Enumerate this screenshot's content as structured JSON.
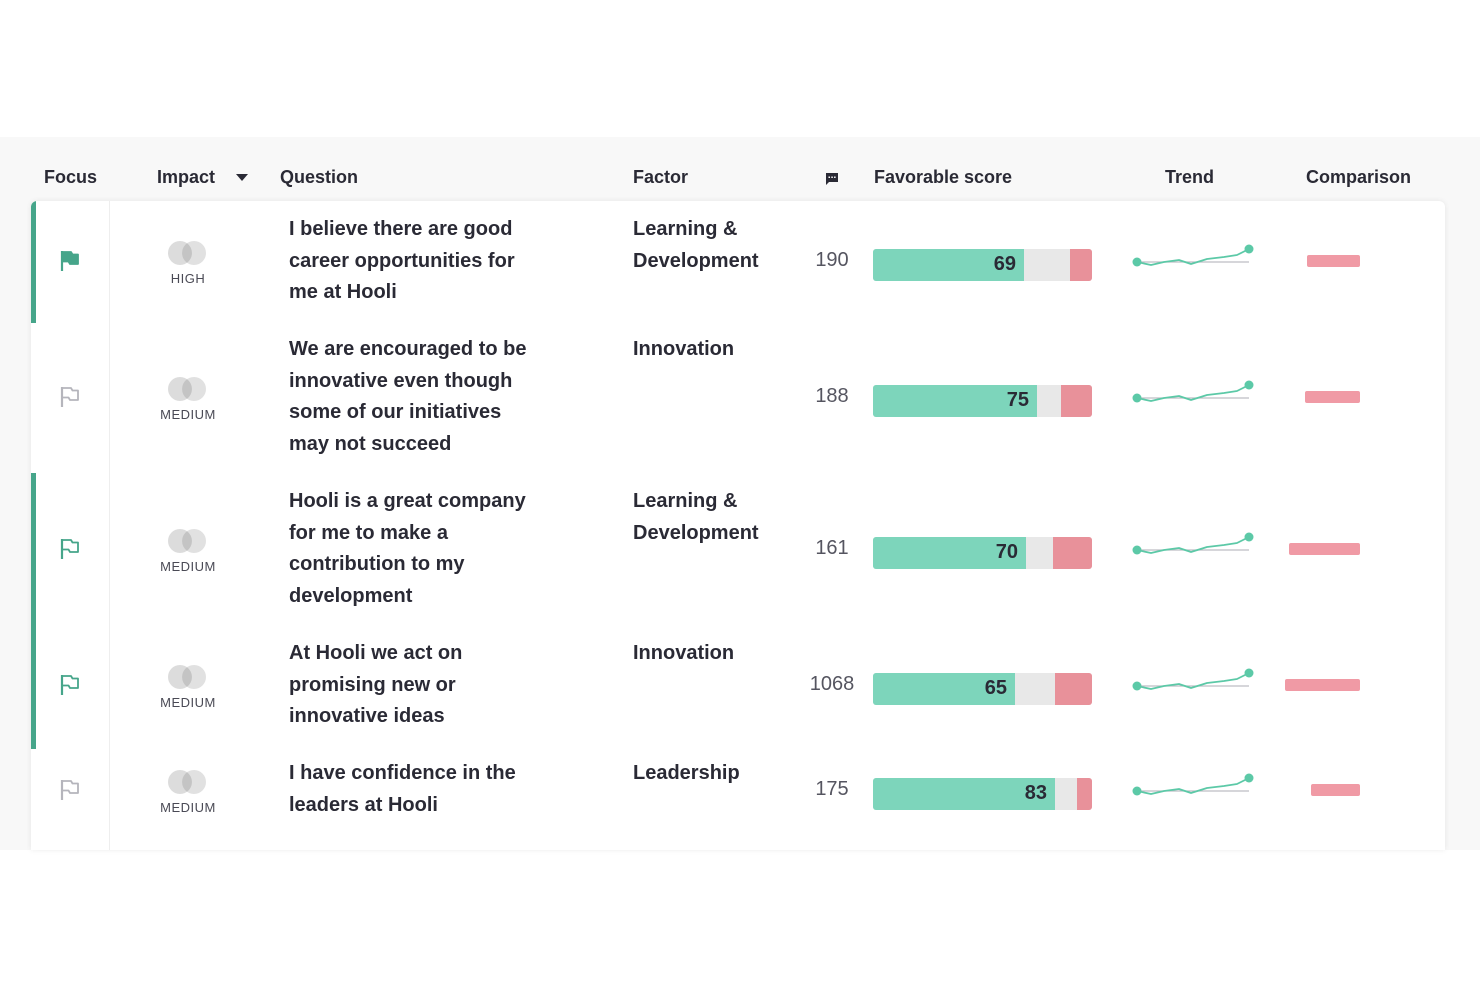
{
  "header": {
    "focus": "Focus",
    "impact": "Impact",
    "question": "Question",
    "factor": "Factor",
    "comments_icon": "comment-icon",
    "favorable_score": "Favorable score",
    "trend": "Trend",
    "comparison": "Comparison"
  },
  "colors": {
    "accent": "#46a58a",
    "favorable": "#7dd5bb",
    "neutral": "#e8e8e8",
    "unfavorable": "#e8919a",
    "comparison": "#f09aa5",
    "trend_line": "#5cc9a7"
  },
  "rows": [
    {
      "focused": true,
      "flag_icon": "flag-filled-icon",
      "impact": "HIGH",
      "impact_icon": "impact-circles-icon",
      "question_lines": [
        "I believe there are good",
        "career opportunities for",
        "me at Hooli"
      ],
      "factor_lines": [
        "Learning &",
        "Development"
      ],
      "count": "190",
      "favorable": 69,
      "unfavorable": 10,
      "comparison": 24
    },
    {
      "focused": false,
      "flag_icon": "flag-outline-icon",
      "impact": "MEDIUM",
      "impact_icon": "impact-circles-icon",
      "question_lines": [
        "We are encouraged to be",
        "innovative even though",
        "some of our initiatives",
        "may not succeed"
      ],
      "factor_lines": [
        "Innovation"
      ],
      "count": "188",
      "favorable": 75,
      "unfavorable": 14,
      "comparison": 25
    },
    {
      "focused": true,
      "flag_icon": "flag-outline-icon",
      "impact": "MEDIUM",
      "impact_icon": "impact-circles-icon",
      "question_lines": [
        "Hooli is a great company",
        "for me to make a",
        "contribution to my",
        "development"
      ],
      "factor_lines": [
        "Learning &",
        "Development"
      ],
      "count": "161",
      "favorable": 70,
      "unfavorable": 18,
      "comparison": 32
    },
    {
      "focused": true,
      "flag_icon": "flag-outline-icon",
      "impact": "MEDIUM",
      "impact_icon": "impact-circles-icon",
      "question_lines": [
        "At Hooli we act on",
        "promising new or",
        "innovative ideas"
      ],
      "factor_lines": [
        "Innovation"
      ],
      "count": "1068",
      "favorable": 65,
      "unfavorable": 17,
      "comparison": 34
    },
    {
      "focused": false,
      "flag_icon": "flag-outline-icon",
      "impact": "MEDIUM",
      "impact_icon": "impact-circles-icon",
      "question_lines": [
        "I have confidence in the",
        "leaders at Hooli"
      ],
      "factor_lines": [
        "Leadership"
      ],
      "count": "175",
      "favorable": 83,
      "unfavorable": 7,
      "comparison": 22
    }
  ]
}
